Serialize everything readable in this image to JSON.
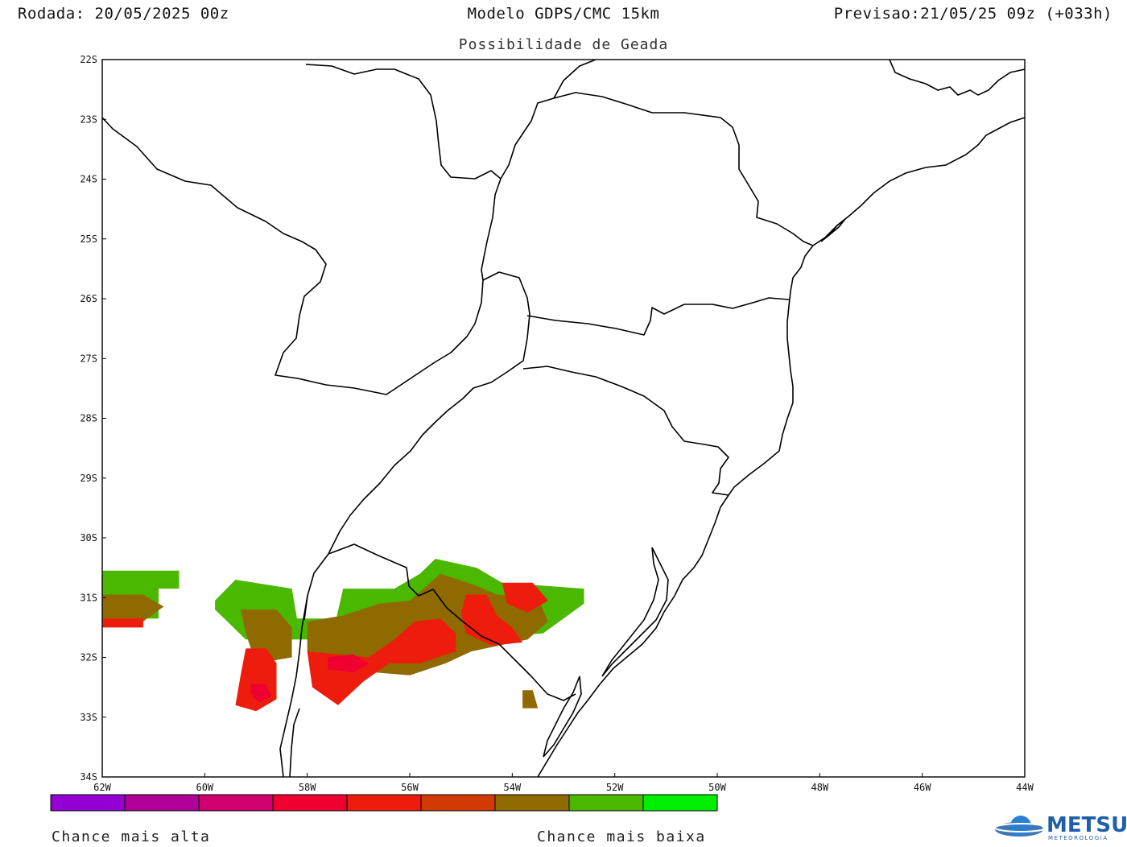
{
  "header": {
    "rodada": "Rodada: 20/05/2025 00z",
    "modelo": "Modelo GDPS/CMC 15km",
    "previsao": "Previsao:21/05/25 09z (+033h)",
    "subtitle": "Possibilidade de Geada"
  },
  "axes": {
    "lat_ticks": [
      "22S",
      "23S",
      "24S",
      "25S",
      "26S",
      "27S",
      "28S",
      "29S",
      "30S",
      "31S",
      "32S",
      "33S",
      "34S"
    ],
    "lon_ticks": [
      "62W",
      "60W",
      "58W",
      "56W",
      "54W",
      "52W",
      "50W",
      "48W",
      "46W",
      "44W"
    ],
    "lat_range": [
      -34,
      -22
    ],
    "lon_range": [
      -62,
      -44
    ]
  },
  "colorbar": {
    "colors": [
      "#9400d3",
      "#b0009a",
      "#d00070",
      "#ee0030",
      "#ee1c0c",
      "#d23a05",
      "#8f6a00",
      "#4bb800",
      "#00ee00"
    ],
    "label_high": "Chance mais alta",
    "label_low": "Chance mais baixa"
  },
  "chart_data": {
    "type": "heatmap",
    "title": "Possibilidade de Geada",
    "regions": [
      {
        "level": "low",
        "color": "#4bb800",
        "poly": [
          [
            -62,
            -30.55
          ],
          [
            -60.5,
            -30.55
          ],
          [
            -60.5,
            -30.85
          ],
          [
            -60.9,
            -30.85
          ],
          [
            -60.9,
            -31.35
          ],
          [
            -62,
            -31.35
          ]
        ]
      },
      {
        "level": "mid",
        "color": "#8f6a00",
        "poly": [
          [
            -62,
            -30.95
          ],
          [
            -61.2,
            -30.95
          ],
          [
            -60.8,
            -31.15
          ],
          [
            -61.2,
            -31.4
          ],
          [
            -62,
            -31.35
          ]
        ]
      },
      {
        "level": "high",
        "color": "#ee1c0c",
        "poly": [
          [
            -62,
            -31.35
          ],
          [
            -61.2,
            -31.35
          ],
          [
            -61.2,
            -31.5
          ],
          [
            -62,
            -31.5
          ]
        ]
      },
      {
        "level": "low",
        "color": "#4bb800",
        "poly": [
          [
            -59.8,
            -31.05
          ],
          [
            -59.4,
            -30.7
          ],
          [
            -58.3,
            -30.85
          ],
          [
            -58.2,
            -31.35
          ],
          [
            -57.4,
            -31.35
          ],
          [
            -57.4,
            -31.7
          ],
          [
            -59.2,
            -31.7
          ],
          [
            -59.8,
            -31.2
          ]
        ]
      },
      {
        "level": "low",
        "color": "#4bb800",
        "poly": [
          [
            -57.3,
            -30.85
          ],
          [
            -56.3,
            -30.85
          ],
          [
            -55.8,
            -30.6
          ],
          [
            -55.5,
            -30.35
          ],
          [
            -54.7,
            -30.5
          ],
          [
            -54.2,
            -30.75
          ],
          [
            -52.6,
            -30.85
          ],
          [
            -52.6,
            -31.1
          ],
          [
            -53.4,
            -31.6
          ],
          [
            -55.2,
            -31.7
          ],
          [
            -57.5,
            -31.6
          ]
        ]
      },
      {
        "level": "mid",
        "color": "#8f6a00",
        "poly": [
          [
            -59.3,
            -31.2
          ],
          [
            -58.6,
            -31.2
          ],
          [
            -58.3,
            -31.5
          ],
          [
            -58.3,
            -32.0
          ],
          [
            -59.0,
            -32.1
          ],
          [
            -59.2,
            -31.6
          ]
        ]
      },
      {
        "level": "mid",
        "color": "#8f6a00",
        "poly": [
          [
            -58.0,
            -31.4
          ],
          [
            -57.3,
            -31.3
          ],
          [
            -56.6,
            -31.1
          ],
          [
            -56.0,
            -31.05
          ],
          [
            -55.4,
            -30.6
          ],
          [
            -54.7,
            -30.8
          ],
          [
            -54.3,
            -30.95
          ],
          [
            -53.5,
            -31.0
          ],
          [
            -53.3,
            -31.4
          ],
          [
            -53.7,
            -31.7
          ],
          [
            -54.8,
            -31.9
          ],
          [
            -55.3,
            -32.1
          ],
          [
            -56.0,
            -32.3
          ],
          [
            -57.4,
            -32.2
          ],
          [
            -58.0,
            -31.9
          ]
        ]
      },
      {
        "level": "high",
        "color": "#ee1c0c",
        "poly": [
          [
            -59.2,
            -31.85
          ],
          [
            -58.8,
            -31.85
          ],
          [
            -58.6,
            -32.1
          ],
          [
            -58.6,
            -32.7
          ],
          [
            -59.0,
            -32.9
          ],
          [
            -59.4,
            -32.8
          ],
          [
            -59.3,
            -32.3
          ]
        ]
      },
      {
        "level": "high",
        "color": "#ee1c0c",
        "poly": [
          [
            -58.0,
            -31.9
          ],
          [
            -57.4,
            -31.95
          ],
          [
            -56.8,
            -32.0
          ],
          [
            -56.3,
            -31.7
          ],
          [
            -55.9,
            -31.4
          ],
          [
            -55.4,
            -31.35
          ],
          [
            -55.1,
            -31.6
          ],
          [
            -55.1,
            -31.9
          ],
          [
            -55.8,
            -32.1
          ],
          [
            -56.4,
            -32.1
          ],
          [
            -56.9,
            -32.4
          ],
          [
            -57.4,
            -32.8
          ],
          [
            -57.9,
            -32.5
          ]
        ]
      },
      {
        "level": "high",
        "color": "#ee1c0c",
        "poly": [
          [
            -54.9,
            -30.95
          ],
          [
            -54.5,
            -30.95
          ],
          [
            -54.3,
            -31.3
          ],
          [
            -54.0,
            -31.5
          ],
          [
            -53.8,
            -31.75
          ],
          [
            -54.4,
            -31.8
          ],
          [
            -54.9,
            -31.6
          ],
          [
            -55.0,
            -31.25
          ]
        ]
      },
      {
        "level": "high",
        "color": "#ee1c0c",
        "poly": [
          [
            -54.2,
            -30.75
          ],
          [
            -53.6,
            -30.75
          ],
          [
            -53.3,
            -31.05
          ],
          [
            -53.7,
            -31.25
          ],
          [
            -54.1,
            -31.1
          ]
        ]
      },
      {
        "level": "very-high",
        "color": "#ee0030",
        "poly": [
          [
            -57.6,
            -32.0
          ],
          [
            -57.1,
            -31.95
          ],
          [
            -56.8,
            -32.1
          ],
          [
            -57.1,
            -32.25
          ],
          [
            -57.6,
            -32.2
          ]
        ]
      },
      {
        "level": "very-high",
        "color": "#ee0030",
        "poly": [
          [
            -59.1,
            -32.45
          ],
          [
            -58.8,
            -32.45
          ],
          [
            -58.7,
            -32.65
          ],
          [
            -58.95,
            -32.75
          ],
          [
            -59.1,
            -32.6
          ]
        ]
      },
      {
        "level": "mid",
        "color": "#8f6a00",
        "poly": [
          [
            -53.8,
            -32.55
          ],
          [
            -53.6,
            -32.55
          ],
          [
            -53.5,
            -32.85
          ],
          [
            -53.8,
            -32.85
          ]
        ]
      }
    ]
  }
}
